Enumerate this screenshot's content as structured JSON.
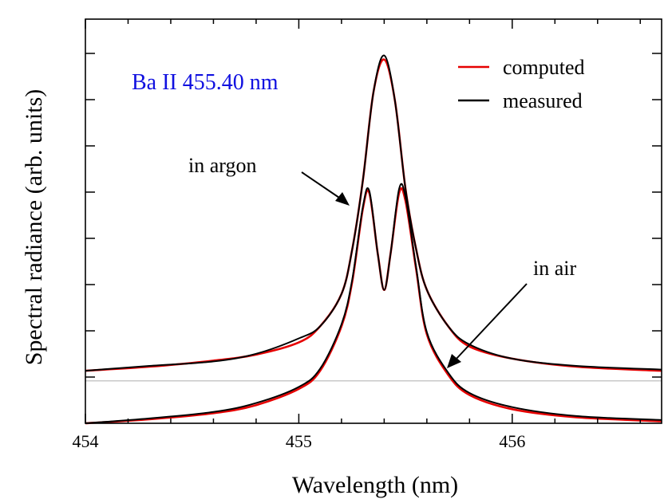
{
  "chart_data": {
    "type": "line",
    "title": "Ba II 455.40 nm",
    "title_color": "#1010e0",
    "xlabel": "Wavelength (nm)",
    "ylabel": "Spectral radiance (arb. units)",
    "xlim": [
      454,
      456.7
    ],
    "ylim": [
      0,
      1
    ],
    "x_ticks": [
      "454",
      "455",
      "456"
    ],
    "x_tick_values": [
      454,
      455,
      456
    ],
    "y_tick_labels_shown": false,
    "grid": false,
    "legend": {
      "placement": "top-right",
      "entries": [
        {
          "name": "computed",
          "color": "#e60000"
        },
        {
          "name": "measured",
          "color": "#000000"
        }
      ]
    },
    "series": [
      {
        "name": "in argon (computed)",
        "color": "#e60000",
        "x": [
          454.0,
          454.3,
          454.6,
          454.8,
          455.0,
          455.1,
          455.2,
          455.25,
          455.3,
          455.35,
          455.4,
          455.45,
          455.5,
          455.55,
          455.6,
          455.7,
          455.8,
          456.0,
          456.3,
          456.7
        ],
        "y": [
          0.13,
          0.14,
          0.155,
          0.17,
          0.2,
          0.24,
          0.32,
          0.43,
          0.6,
          0.82,
          0.9,
          0.8,
          0.58,
          0.43,
          0.33,
          0.24,
          0.19,
          0.16,
          0.14,
          0.13
        ]
      },
      {
        "name": "in argon (measured)",
        "color": "#000000",
        "x": [
          454.0,
          454.3,
          454.6,
          454.8,
          455.0,
          455.1,
          455.2,
          455.25,
          455.3,
          455.35,
          455.4,
          455.45,
          455.5,
          455.55,
          455.6,
          455.7,
          455.8,
          456.0,
          456.3,
          456.7
        ],
        "y": [
          0.13,
          0.142,
          0.153,
          0.172,
          0.21,
          0.24,
          0.32,
          0.43,
          0.6,
          0.82,
          0.91,
          0.8,
          0.58,
          0.43,
          0.33,
          0.24,
          0.195,
          0.16,
          0.142,
          0.133
        ]
      },
      {
        "name": "in air (computed)",
        "color": "#e60000",
        "x": [
          454.0,
          454.3,
          454.6,
          454.8,
          455.0,
          455.1,
          455.2,
          455.25,
          455.3,
          455.33,
          455.37,
          455.4,
          455.43,
          455.47,
          455.5,
          455.55,
          455.6,
          455.7,
          455.8,
          456.0,
          456.3,
          456.7
        ],
        "y": [
          0.0,
          0.01,
          0.025,
          0.045,
          0.085,
          0.13,
          0.24,
          0.35,
          0.53,
          0.57,
          0.42,
          0.33,
          0.42,
          0.57,
          0.55,
          0.38,
          0.22,
          0.12,
          0.07,
          0.035,
          0.015,
          0.005
        ]
      },
      {
        "name": "in air (measured)",
        "color": "#000000",
        "x": [
          454.0,
          454.3,
          454.6,
          454.8,
          455.0,
          455.1,
          455.2,
          455.25,
          455.3,
          455.33,
          455.37,
          455.4,
          455.43,
          455.47,
          455.5,
          455.55,
          455.6,
          455.7,
          455.8,
          456.0,
          456.3,
          456.7
        ],
        "y": [
          0.0,
          0.012,
          0.028,
          0.05,
          0.09,
          0.135,
          0.245,
          0.355,
          0.535,
          0.575,
          0.42,
          0.33,
          0.42,
          0.58,
          0.56,
          0.385,
          0.225,
          0.125,
          0.075,
          0.04,
          0.018,
          0.008
        ]
      }
    ],
    "annotations": [
      {
        "text": "in argon"
      },
      {
        "text": "in air"
      }
    ]
  }
}
